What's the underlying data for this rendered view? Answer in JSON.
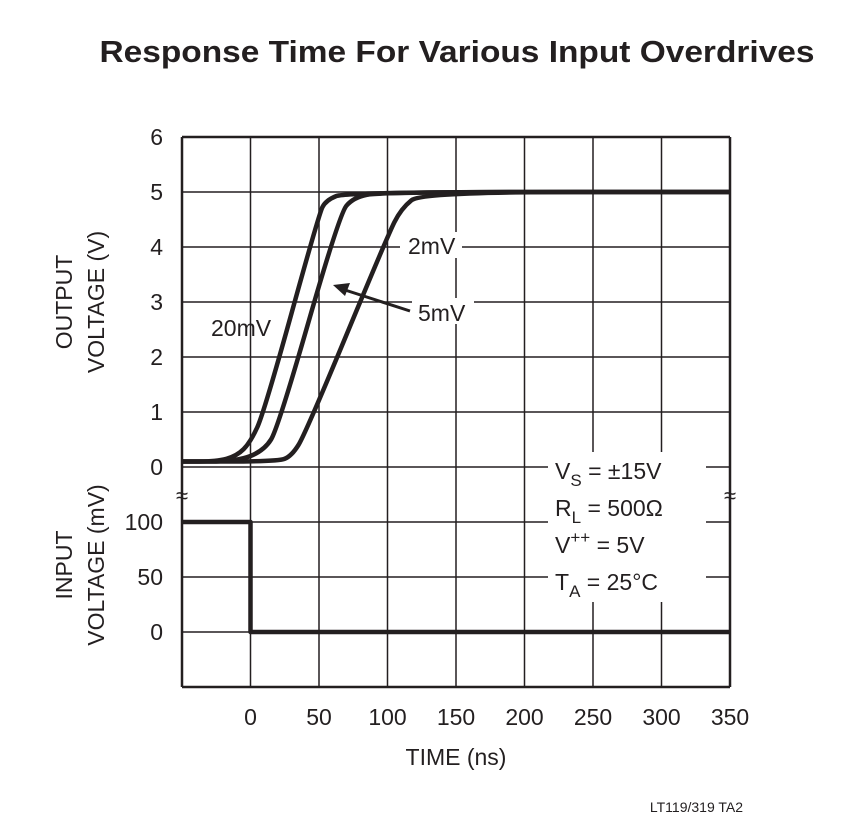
{
  "chart_data": {
    "type": "line",
    "title": "Response Time For Various Input Overdrives",
    "xlabel": "TIME (ns)",
    "xlim": [
      -50,
      350
    ],
    "xticks": [
      0,
      50,
      100,
      150,
      200,
      250,
      300,
      350
    ],
    "grid": true,
    "panels": {
      "output": {
        "ylabel_line1": "OUTPUT",
        "ylabel_line2": "VOLTAGE (V)",
        "ylim": [
          0,
          6
        ],
        "yticks": [
          0,
          1,
          2,
          3,
          4,
          5,
          6
        ]
      },
      "input": {
        "ylabel_line1": "INPUT",
        "ylabel_line2": "VOLTAGE (mV)",
        "ylim": [
          -50,
          100
        ],
        "yticks": [
          0,
          50,
          100
        ]
      }
    },
    "series": [
      {
        "name": "20mV",
        "panel": "output",
        "x": [
          -50,
          -25,
          -10,
          0,
          10,
          50,
          55,
          70,
          350
        ],
        "y": [
          0.1,
          0.1,
          0.2,
          0.45,
          1.0,
          4.6,
          4.85,
          5,
          5
        ]
      },
      {
        "name": "5mV",
        "panel": "output",
        "x": [
          -50,
          -10,
          10,
          20,
          65,
          75,
          95,
          350
        ],
        "y": [
          0.1,
          0.1,
          0.3,
          0.7,
          4.6,
          4.9,
          5,
          5
        ]
      },
      {
        "name": "2mV",
        "panel": "output",
        "x": [
          -50,
          20,
          30,
          40,
          100,
          110,
          125,
          350
        ],
        "y": [
          0.1,
          0.1,
          0.2,
          0.6,
          4.2,
          4.7,
          5,
          5
        ]
      },
      {
        "name": "input",
        "panel": "input",
        "x": [
          -50,
          0,
          0,
          350
        ],
        "y": [
          100,
          100,
          0,
          0
        ]
      }
    ],
    "conditions": [
      {
        "main": "V",
        "sub": "S",
        "sup": "",
        "rest": " = ±15V"
      },
      {
        "main": "R",
        "sub": "L",
        "sup": "",
        "rest": " = 500Ω"
      },
      {
        "main": "V",
        "sub": "",
        "sup": "++",
        "rest": " = 5V"
      },
      {
        "main": "T",
        "sub": "A",
        "sup": "",
        "rest": " = 25°C"
      }
    ],
    "footnote": "LT119/319 TA2"
  }
}
